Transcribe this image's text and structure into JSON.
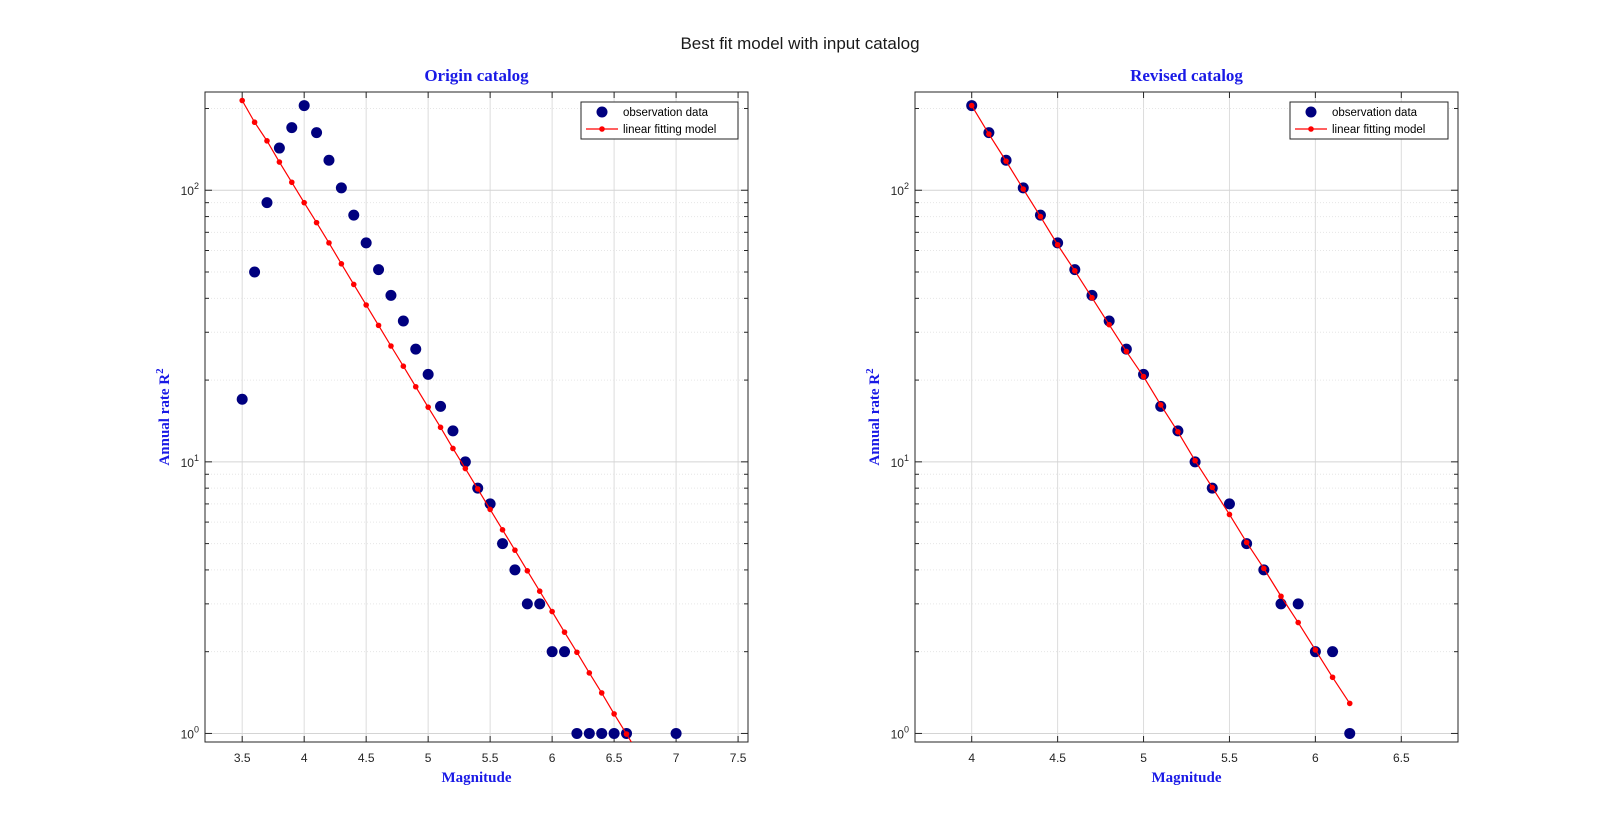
{
  "figure": {
    "title": "Best fit model with input catalog"
  },
  "chart_data": [
    {
      "type": "scatter",
      "title": "Origin catalog",
      "xlabel": "Magnitude",
      "ylabel": "Annual rate R",
      "ylabel_sup": "2",
      "xlim": [
        3.2,
        7.58
      ],
      "ylim": [
        0.93,
        230
      ],
      "yscale": "log",
      "grid": true,
      "xticks": [
        3.5,
        4,
        4.5,
        5,
        5.5,
        6,
        6.5,
        7,
        7.5
      ],
      "xtick_labels": [
        "3.5",
        "4",
        "4.5",
        "5",
        "5.5",
        "6",
        "6.5",
        "7",
        "7.5"
      ],
      "yticks": [
        {
          "base": "10",
          "exp": "0",
          "value": 1
        },
        {
          "base": "10",
          "exp": "1",
          "value": 10
        },
        {
          "base": "10",
          "exp": "2",
          "value": 100
        }
      ],
      "legend": {
        "position": "top-right",
        "entries": [
          "observation data",
          "linear fitting model"
        ]
      },
      "series": [
        {
          "name": "observation data",
          "color": "#00007f",
          "x": [
            3.5,
            3.6,
            3.7,
            3.8,
            3.9,
            4.0,
            4.1,
            4.2,
            4.3,
            4.4,
            4.5,
            4.6,
            4.7,
            4.8,
            4.9,
            5.0,
            5.1,
            5.2,
            5.3,
            5.4,
            5.5,
            5.6,
            5.7,
            5.8,
            5.9,
            6.0,
            6.1,
            6.2,
            6.3,
            6.4,
            6.5,
            6.6,
            7.0
          ],
          "y": [
            17,
            50,
            90,
            143,
            170,
            205,
            163,
            129,
            102,
            81,
            64,
            51,
            41,
            33,
            26,
            21,
            16,
            13,
            10,
            8,
            7,
            5,
            4,
            3,
            3,
            2,
            2,
            1,
            1,
            1,
            1,
            1,
            1
          ]
        },
        {
          "name": "linear fitting model",
          "color": "#ff0000",
          "x": [
            3.5,
            3.6,
            3.7,
            3.8,
            3.9,
            4.0,
            4.1,
            4.2,
            4.3,
            4.4,
            4.5,
            4.6,
            4.7,
            4.8,
            4.9,
            5.0,
            5.1,
            5.2,
            5.3,
            5.4,
            5.5,
            5.6,
            5.7,
            5.8,
            5.9,
            6.0,
            6.1,
            6.2,
            6.3,
            6.4,
            6.5,
            6.6,
            6.7
          ],
          "y": [
            214,
            178,
            152,
            127,
            107,
            90,
            76,
            64,
            53.6,
            45,
            37.8,
            31.8,
            26.7,
            22.5,
            18.9,
            15.9,
            13.4,
            11.2,
            9.45,
            7.95,
            6.68,
            5.62,
            4.73,
            3.97,
            3.34,
            2.81,
            2.36,
            1.99,
            1.67,
            1.41,
            1.18,
            0.995,
            0.837
          ]
        }
      ]
    },
    {
      "type": "scatter",
      "title": "Revised catalog",
      "xlabel": "Magnitude",
      "ylabel": "Annual rate R",
      "ylabel_sup": "2",
      "xlim": [
        3.67,
        6.83
      ],
      "ylim": [
        0.93,
        230
      ],
      "yscale": "log",
      "grid": true,
      "xticks": [
        4,
        4.5,
        5,
        5.5,
        6,
        6.5
      ],
      "xtick_labels": [
        "4",
        "4.5",
        "5",
        "5.5",
        "6",
        "6.5"
      ],
      "yticks": [
        {
          "base": "10",
          "exp": "0",
          "value": 1
        },
        {
          "base": "10",
          "exp": "1",
          "value": 10
        },
        {
          "base": "10",
          "exp": "2",
          "value": 100
        }
      ],
      "legend": {
        "position": "top-right",
        "entries": [
          "observation data",
          "linear fitting model"
        ]
      },
      "series": [
        {
          "name": "observation data",
          "color": "#00007f",
          "x": [
            4.0,
            4.1,
            4.2,
            4.3,
            4.4,
            4.5,
            4.6,
            4.7,
            4.8,
            4.9,
            5.0,
            5.1,
            5.2,
            5.3,
            5.4,
            5.5,
            5.6,
            5.7,
            5.8,
            5.9,
            6.0,
            6.1,
            6.2
          ],
          "y": [
            205,
            163,
            129,
            102,
            81,
            64,
            51,
            41,
            33,
            26,
            21,
            16,
            13,
            10,
            8,
            7,
            5,
            4,
            3,
            3,
            2,
            2,
            1
          ]
        },
        {
          "name": "linear fitting model",
          "color": "#ff0000",
          "x": [
            4.0,
            4.1,
            4.2,
            4.3,
            4.4,
            4.5,
            4.6,
            4.7,
            4.8,
            4.9,
            5.0,
            5.1,
            5.2,
            5.3,
            5.4,
            5.5,
            5.6,
            5.7,
            5.8,
            5.9,
            6.0,
            6.1,
            6.2
          ],
          "y": [
            205,
            161,
            128,
            101,
            80,
            63,
            50.5,
            40.2,
            32,
            25.5,
            20.6,
            16.2,
            12.9,
            10.1,
            8.05,
            6.4,
            5.05,
            4.05,
            3.2,
            2.56,
            2.03,
            1.61,
            1.29
          ]
        }
      ]
    }
  ]
}
